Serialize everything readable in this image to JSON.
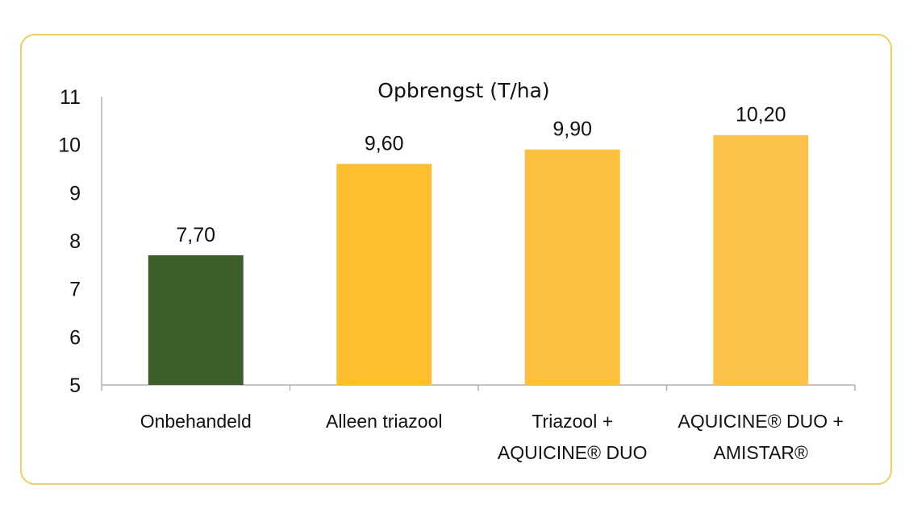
{
  "chart_data": {
    "type": "bar",
    "title": "Opbrengst (T/ha)",
    "xlabel": "",
    "ylabel": "",
    "ylim": [
      5,
      11
    ],
    "yticks": [
      "5",
      "6",
      "7",
      "8",
      "9",
      "10",
      "11"
    ],
    "grid": false,
    "categories": [
      [
        "Onbehandeld"
      ],
      [
        "Alleen triazool"
      ],
      [
        "Triazool +",
        "AQUICINE® DUO"
      ],
      [
        "AQUICINE® DUO +",
        "AMISTAR®"
      ]
    ],
    "values": [
      7.7,
      9.6,
      9.9,
      10.2
    ],
    "data_labels": [
      "7,70",
      "9,60",
      "9,90",
      "10,20"
    ],
    "colors": [
      "#3e5e2a",
      "#fdbf2f",
      "#fdbf3e",
      "#fdc24a"
    ],
    "border_color": "#f2cd62",
    "axis_color": "#b0b0b0"
  }
}
